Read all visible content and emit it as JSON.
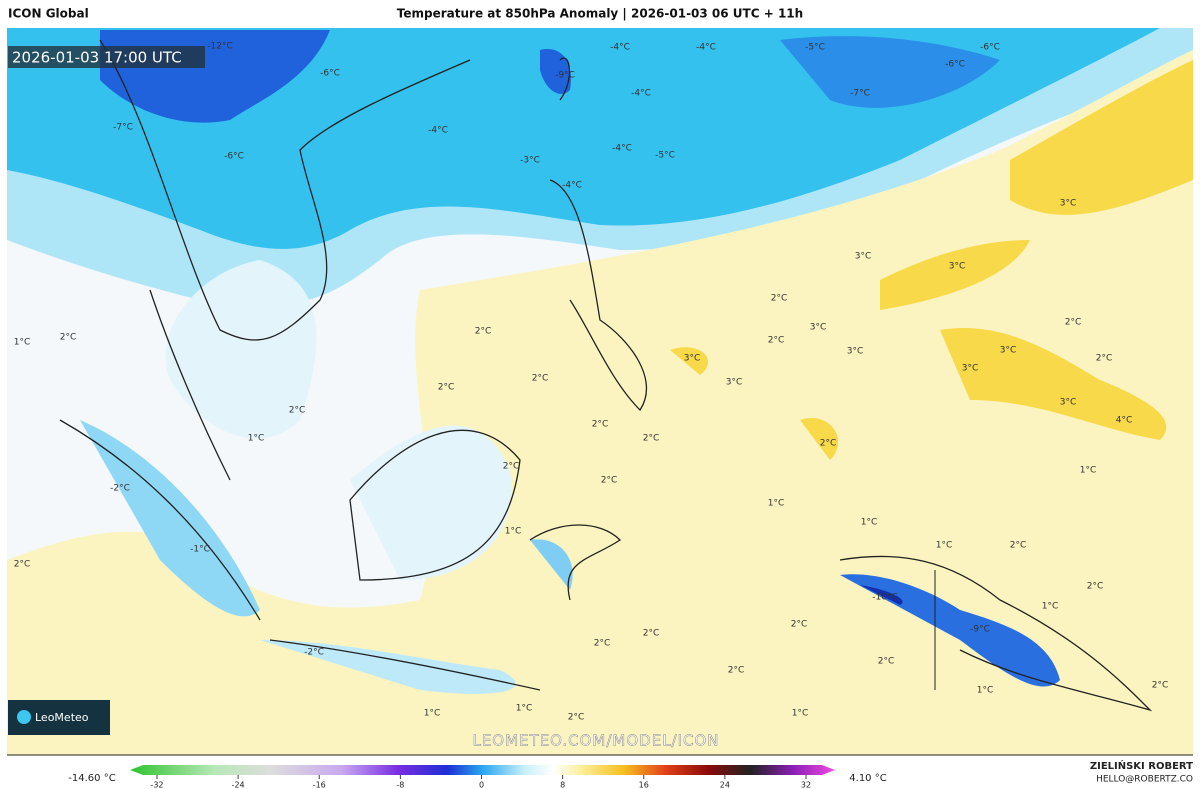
{
  "header": {
    "model": "ICON Global",
    "title": "Temperature at 850hPa Anomaly | 2026-01-03 06 UTC + 11h"
  },
  "timestamp": "2026-01-03 17:00 UTC",
  "logo": "LeoMeteo",
  "watermark": "LEOMETEO.COM/MODEL/ICON",
  "contour_labels": [
    "-12°C",
    "-4°C",
    "-4°C",
    "-5°C",
    "-6°C",
    "-6°C",
    "-7°C",
    "-9°C",
    "-6°C",
    "-7°C",
    "-4°C",
    "-4°C",
    "-6°C",
    "-3°C",
    "-4°C",
    "-5°C",
    "-4°C",
    "3°C",
    "3°C",
    "3°C",
    "2°C",
    "3°C",
    "2°C",
    "3°C",
    "2°C",
    "3°C",
    "3°C",
    "2°C",
    "3°C",
    "3°C",
    "2°C",
    "1°C",
    "2°C",
    "2°C",
    "2°C",
    "2°C",
    "1°C",
    "3°C",
    "4°C",
    "2°C",
    "2°C",
    "2°C",
    "2°C",
    "2°C",
    "1°C",
    "-2°C",
    "1°C",
    "1°C",
    "1°C",
    "-1°C",
    "1°C",
    "2°C",
    "2°C",
    "-10°C",
    "2°C",
    "1°C",
    "-9°C",
    "2°C",
    "2°C",
    "2°C",
    "-2°C",
    "2°C",
    "2°C",
    "1°C",
    "2°C",
    "1°C",
    "1°C",
    "2°C",
    "1°C"
  ],
  "colorbar": {
    "min_label": "-14.60 °C",
    "max_label": "4.10 °C",
    "ticks": [
      -32,
      -24,
      -16,
      -8,
      0,
      8,
      16,
      24,
      32
    ]
  },
  "credits": {
    "author": "ZIELIŃSKI ROBERT",
    "email": "HELLO@ROBERTZ.CO"
  }
}
